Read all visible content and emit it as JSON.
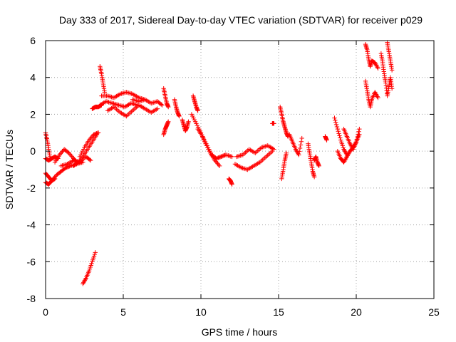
{
  "chart_data": {
    "type": "scatter",
    "title": "Day 333 of 2017, Sidereal Day-to-day VTEC variation (SDTVAR) for receiver p029",
    "xlabel": "GPS time / hours",
    "ylabel": "SDTVAR / TECUs",
    "xlim": [
      0,
      25
    ],
    "ylim": [
      -8,
      6
    ],
    "xticks": [
      0,
      5,
      10,
      15,
      20,
      25
    ],
    "yticks": [
      -8,
      -6,
      -4,
      -2,
      0,
      2,
      4,
      6
    ],
    "grid": true,
    "marker": "+",
    "color": "#ff0000",
    "series": [
      {
        "name": "SDTVAR",
        "segments": [
          {
            "x": [
              0.0,
              0.2,
              0.4,
              0.6,
              0.8
            ],
            "y": [
              -0.4,
              -0.5,
              -0.4,
              -0.3,
              -0.4
            ]
          },
          {
            "x": [
              0.0,
              0.1,
              0.2,
              0.3
            ],
            "y": [
              1.0,
              0.6,
              0.1,
              -0.4
            ]
          },
          {
            "x": [
              0.0,
              0.2,
              0.4,
              0.7,
              1.0,
              1.3,
              1.6,
              2.0,
              2.4
            ],
            "y": [
              -1.7,
              -1.8,
              -1.6,
              -1.3,
              -1.1,
              -0.9,
              -0.8,
              -0.7,
              -0.6
            ]
          },
          {
            "x": [
              0.0,
              0.2,
              0.4,
              0.6
            ],
            "y": [
              -1.2,
              -1.4,
              -1.6,
              -1.5
            ]
          },
          {
            "x": [
              0.6,
              0.9,
              1.2,
              1.5,
              1.8,
              2.0
            ],
            "y": [
              -0.6,
              -0.2,
              0.1,
              -0.1,
              -0.4,
              -0.6
            ]
          },
          {
            "x": [
              1.0,
              1.4,
              1.8,
              2.2,
              2.6,
              2.9
            ],
            "y": [
              -0.8,
              -0.7,
              -0.5,
              -0.6,
              -0.3,
              -0.5
            ]
          },
          {
            "x": [
              1.8,
              2.1,
              2.4,
              2.7,
              3.0,
              3.3
            ],
            "y": [
              -0.8,
              -0.6,
              -0.3,
              0.1,
              0.5,
              0.9
            ]
          },
          {
            "x": [
              2.2,
              2.5,
              2.8,
              3.1,
              3.4
            ],
            "y": [
              -0.3,
              0.2,
              0.6,
              0.9,
              1.0
            ]
          },
          {
            "x": [
              2.4,
              2.6,
              2.8,
              3.0,
              3.2
            ],
            "y": [
              -7.2,
              -6.9,
              -6.5,
              -6.0,
              -5.5
            ]
          },
          {
            "x": [
              3.0,
              3.2,
              3.4,
              3.6
            ],
            "y": [
              2.3,
              2.4,
              2.4,
              2.5
            ]
          },
          {
            "x": [
              3.5,
              3.6,
              3.7,
              3.8
            ],
            "y": [
              4.6,
              4.2,
              3.7,
              3.2
            ]
          },
          {
            "x": [
              3.5,
              3.9,
              4.3,
              4.7,
              5.1,
              5.5,
              5.9
            ],
            "y": [
              2.5,
              2.7,
              2.6,
              2.5,
              2.4,
              2.6,
              2.5
            ]
          },
          {
            "x": [
              3.6,
              4.0,
              4.4,
              4.8,
              5.2,
              5.6,
              6.0,
              6.4
            ],
            "y": [
              3.0,
              3.0,
              2.9,
              3.1,
              3.2,
              3.1,
              2.9,
              2.8
            ]
          },
          {
            "x": [
              4.0,
              4.4,
              4.8,
              5.2,
              5.6,
              6.0,
              6.4,
              6.8,
              7.2
            ],
            "y": [
              2.2,
              2.4,
              2.1,
              1.9,
              2.2,
              2.5,
              2.3,
              2.1,
              2.3
            ]
          },
          {
            "x": [
              5.6,
              6.0,
              6.4,
              6.8,
              7.2,
              7.5
            ],
            "y": [
              2.8,
              2.7,
              2.8,
              2.6,
              2.7,
              2.5
            ]
          },
          {
            "x": [
              7.6,
              7.7,
              7.8,
              7.9
            ],
            "y": [
              3.4,
              3.0,
              2.6,
              2.4
            ]
          },
          {
            "x": [
              7.6,
              7.7,
              7.8,
              7.9
            ],
            "y": [
              0.9,
              1.2,
              1.4,
              1.6
            ]
          },
          {
            "x": [
              8.3,
              8.4,
              8.5,
              8.6
            ],
            "y": [
              2.8,
              2.4,
              2.1,
              1.9
            ]
          },
          {
            "x": [
              8.8,
              8.9,
              9.0,
              9.1,
              9.2
            ],
            "y": [
              1.7,
              1.4,
              1.1,
              1.3,
              1.6
            ]
          },
          {
            "x": [
              9.5,
              9.6,
              9.7,
              9.8
            ],
            "y": [
              3.0,
              2.7,
              2.4,
              2.2
            ]
          },
          {
            "x": [
              9.4,
              9.7,
              10.0,
              10.3,
              10.6,
              10.9,
              11.2
            ],
            "y": [
              2.0,
              1.5,
              1.0,
              0.4,
              -0.1,
              -0.5,
              -0.8
            ]
          },
          {
            "x": [
              9.8,
              10.1,
              10.4,
              10.7,
              11.0,
              11.3,
              11.6,
              12.0
            ],
            "y": [
              1.2,
              0.8,
              0.3,
              -0.2,
              -0.4,
              -0.3,
              -0.2,
              -0.3
            ]
          },
          {
            "x": [
              11.8,
              11.9,
              12.0
            ],
            "y": [
              -1.5,
              -1.6,
              -1.8
            ]
          },
          {
            "x": [
              12.2,
              12.6,
              13.0,
              13.4,
              13.8,
              14.2,
              14.6
            ],
            "y": [
              -0.7,
              -0.9,
              -1.0,
              -0.8,
              -0.6,
              -0.3,
              0.0
            ]
          },
          {
            "x": [
              12.3,
              12.7,
              13.1,
              13.5,
              13.9,
              14.3,
              14.7
            ],
            "y": [
              -0.3,
              -0.2,
              0.1,
              -0.1,
              0.2,
              0.3,
              0.1
            ]
          },
          {
            "x": [
              14.6,
              14.7
            ],
            "y": [
              1.5,
              1.5
            ]
          },
          {
            "x": [
              15.1,
              15.2,
              15.3,
              15.4,
              15.5,
              15.6
            ],
            "y": [
              2.4,
              2.0,
              1.6,
              1.3,
              1.0,
              0.8
            ]
          },
          {
            "x": [
              15.2,
              15.3,
              15.4,
              15.5
            ],
            "y": [
              -1.5,
              -1.0,
              -0.5,
              -0.1
            ]
          },
          {
            "x": [
              15.7,
              15.9,
              16.1,
              16.3,
              16.5
            ],
            "y": [
              0.9,
              0.5,
              0.1,
              -0.2,
              0.7
            ]
          },
          {
            "x": [
              16.9,
              17.0,
              17.1,
              17.2,
              17.3
            ],
            "y": [
              0.4,
              -0.1,
              -0.6,
              -1.1,
              -1.4
            ]
          },
          {
            "x": [
              17.3,
              17.4,
              17.5,
              17.6
            ],
            "y": [
              -0.5,
              -0.3,
              -0.6,
              -0.8
            ]
          },
          {
            "x": [
              18.0,
              18.1
            ],
            "y": [
              0.8,
              0.6
            ]
          },
          {
            "x": [
              18.6,
              18.8,
              19.0,
              19.2,
              19.4
            ],
            "y": [
              1.8,
              1.2,
              0.6,
              0.1,
              -0.2
            ]
          },
          {
            "x": [
              18.8,
              19.0,
              19.2,
              19.4,
              19.6,
              19.8,
              20.0,
              20.2
            ],
            "y": [
              0.0,
              -0.4,
              -0.6,
              -0.3,
              0.0,
              0.2,
              0.5,
              1.2
            ]
          },
          {
            "x": [
              19.2,
              19.4,
              19.6,
              19.8,
              20.0,
              20.2
            ],
            "y": [
              1.2,
              0.8,
              0.4,
              0.1,
              0.5,
              0.9
            ]
          },
          {
            "x": [
              20.6,
              20.7,
              20.8,
              20.9,
              21.0,
              21.2,
              21.4
            ],
            "y": [
              5.8,
              5.5,
              5.0,
              4.6,
              4.9,
              4.8,
              4.5
            ]
          },
          {
            "x": [
              20.6,
              20.7,
              20.8,
              20.9,
              21.0,
              21.2,
              21.4
            ],
            "y": [
              3.8,
              3.3,
              2.8,
              2.4,
              2.8,
              3.2,
              2.9
            ]
          },
          {
            "x": [
              21.6,
              21.7,
              21.8,
              21.9,
              22.0,
              22.1,
              22.2,
              22.3
            ],
            "y": [
              5.3,
              4.8,
              4.2,
              3.7,
              3.0,
              3.5,
              4.0,
              3.4
            ]
          },
          {
            "x": [
              22.0,
              22.1,
              22.2,
              22.3
            ],
            "y": [
              5.9,
              5.4,
              4.9,
              4.4
            ]
          }
        ]
      }
    ]
  }
}
